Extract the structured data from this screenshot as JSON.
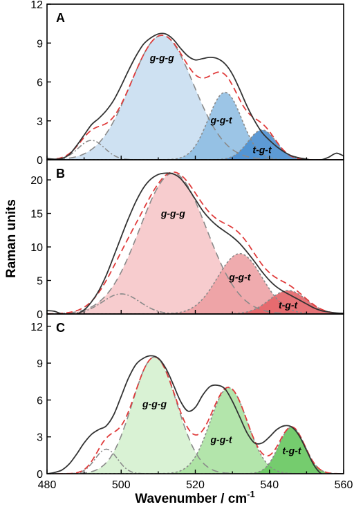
{
  "figure": {
    "xlabel_main": "Wavenumber / cm",
    "xlabel_sup": "-1",
    "ylabel": "Raman units",
    "xlim": [
      480,
      560
    ],
    "x_ticks": [
      "480",
      "500",
      "520",
      "540",
      "560"
    ]
  },
  "chart_data": [
    {
      "type": "area",
      "panel": "A",
      "xlabel": "Wavenumber / cm-1",
      "ylabel": "Raman units",
      "xlim": [
        480,
        560
      ],
      "ylim": [
        0,
        12
      ],
      "y_ticks": [
        "0",
        "3",
        "6",
        "9",
        "12"
      ],
      "colors": {
        "fill": "#bdd7ee",
        "peak": "#5b9bd5"
      },
      "band_labels": [
        {
          "text": "g-g-g",
          "x": 511,
          "y": 7.6
        },
        {
          "text": "g-g-t",
          "x": 527,
          "y": 2.8
        },
        {
          "text": "t-g-t",
          "x": 538,
          "y": 0.5
        }
      ],
      "components": [
        {
          "label": "g-g-g",
          "center": 511,
          "height": 9.6,
          "sigma": 8.5,
          "fill": "#c6dcf0",
          "opacity": 0.85,
          "dash": "10,6"
        },
        {
          "label": "g-g-t",
          "center": 528,
          "height": 5.2,
          "sigma": 4.5,
          "fill": "#8bbbe2",
          "opacity": 0.85,
          "dash": "3,3"
        },
        {
          "label": "t-g-t",
          "center": 538,
          "height": 2.3,
          "sigma": 3.8,
          "fill": "#4b8fd0",
          "opacity": 0.9,
          "dash": "3,3"
        },
        {
          "label": "",
          "center": 492,
          "height": 1.5,
          "sigma": 3.5,
          "fill": "none",
          "opacity": 0,
          "dash": "8,3,2,3"
        }
      ],
      "measured": {
        "x": [
          480,
          482,
          484,
          486,
          488,
          490,
          492,
          494,
          496,
          498,
          500,
          502,
          504,
          506,
          508,
          510,
          512,
          514,
          516,
          518,
          520,
          522,
          524,
          526,
          528,
          530,
          532,
          534,
          536,
          538,
          540,
          542,
          544,
          546,
          548,
          550,
          552,
          554,
          556,
          558,
          560
        ],
        "y": [
          0.1,
          0.05,
          0.1,
          0.4,
          1.1,
          1.9,
          2.7,
          3.2,
          3.8,
          4.6,
          5.7,
          6.9,
          8.0,
          8.9,
          9.4,
          9.7,
          9.7,
          9.3,
          8.6,
          8.0,
          7.7,
          7.8,
          7.9,
          7.8,
          7.4,
          6.6,
          5.4,
          4.1,
          3.0,
          2.1,
          1.5,
          1.0,
          0.6,
          0.3,
          0.15,
          0.05,
          -0.05,
          0.0,
          0.2,
          0.5,
          0.3
        ]
      }
    },
    {
      "type": "area",
      "panel": "B",
      "xlabel": "Wavenumber / cm-1",
      "ylabel": "Raman units",
      "xlim": [
        480,
        560
      ],
      "ylim": [
        0,
        23
      ],
      "y_ticks": [
        "0",
        "5",
        "10",
        "15",
        "20"
      ],
      "colors": {
        "fill": "#f4c6c8",
        "peak": "#e06060"
      },
      "band_labels": [
        {
          "text": "g-g-g",
          "x": 514,
          "y": 14.5
        },
        {
          "text": "g-g-t",
          "x": 532,
          "y": 5.0
        },
        {
          "text": "t-g-t",
          "x": 545,
          "y": 0.8
        }
      ],
      "components": [
        {
          "label": "g-g-g",
          "center": 514,
          "height": 21.0,
          "sigma": 9.0,
          "fill": "#f6c3c6",
          "opacity": 0.85,
          "dash": "10,6"
        },
        {
          "label": "g-g-t",
          "center": 532,
          "height": 9.0,
          "sigma": 6.0,
          "fill": "#ec9ca0",
          "opacity": 0.85,
          "dash": "3,3"
        },
        {
          "label": "t-g-t",
          "center": 545,
          "height": 3.5,
          "sigma": 5.0,
          "fill": "#e46468",
          "opacity": 0.9,
          "dash": "3,3"
        },
        {
          "label": "",
          "center": 500,
          "height": 3.0,
          "sigma": 5.0,
          "fill": "none",
          "opacity": 0,
          "dash": "8,3,2,3"
        }
      ],
      "measured": {
        "x": [
          480,
          482,
          484,
          486,
          488,
          490,
          492,
          494,
          496,
          498,
          500,
          502,
          504,
          506,
          508,
          510,
          512,
          514,
          516,
          518,
          520,
          522,
          524,
          526,
          528,
          530,
          532,
          534,
          536,
          538,
          540,
          542,
          544,
          546,
          548,
          550,
          552,
          554,
          556,
          558,
          560
        ],
        "y": [
          0.5,
          0.4,
          0.0,
          -0.1,
          0.0,
          0.6,
          1.8,
          3.5,
          5.8,
          8.6,
          11.5,
          14.3,
          16.8,
          18.8,
          20.1,
          20.8,
          21.0,
          20.9,
          20.2,
          18.8,
          17.1,
          15.4,
          14.1,
          13.1,
          12.3,
          11.5,
          10.5,
          9.2,
          7.8,
          6.3,
          5.0,
          4.0,
          3.3,
          2.7,
          2.1,
          1.5,
          0.9,
          0.5,
          0.3,
          0.15,
          0.1
        ]
      }
    },
    {
      "type": "area",
      "panel": "C",
      "xlabel": "Wavenumber / cm-1",
      "ylabel": "Raman units",
      "xlim": [
        480,
        560
      ],
      "ylim": [
        0,
        13
      ],
      "y_ticks": [
        "0",
        "3",
        "6",
        "9",
        "12"
      ],
      "colors": {
        "fill": "#c8ecc0",
        "peak": "#5cc05a"
      },
      "band_labels": [
        {
          "text": "g-g-g",
          "x": 509,
          "y": 5.4
        },
        {
          "text": "g-g-t",
          "x": 527,
          "y": 2.5
        },
        {
          "text": "t-g-t",
          "x": 546,
          "y": 1.6
        }
      ],
      "components": [
        {
          "label": "g-g-g",
          "center": 509,
          "height": 9.5,
          "sigma": 6.0,
          "fill": "#d2f0cc",
          "opacity": 0.85,
          "dash": "10,6"
        },
        {
          "label": "g-g-t",
          "center": 529,
          "height": 7.0,
          "sigma": 5.0,
          "fill": "#a6e09c",
          "opacity": 0.85,
          "dash": "3,3"
        },
        {
          "label": "t-g-t",
          "center": 546,
          "height": 3.8,
          "sigma": 3.5,
          "fill": "#66c75e",
          "opacity": 0.9,
          "dash": "3,3"
        },
        {
          "label": "",
          "center": 496,
          "height": 2.0,
          "sigma": 3.0,
          "fill": "none",
          "opacity": 0,
          "dash": "8,3,2,3"
        }
      ],
      "measured": {
        "x": [
          480,
          482,
          484,
          486,
          488,
          490,
          492,
          494,
          496,
          498,
          500,
          502,
          504,
          506,
          508,
          510,
          512,
          514,
          516,
          518,
          520,
          522,
          524,
          526,
          528,
          530,
          532,
          534,
          536,
          538,
          540,
          542,
          544,
          546,
          548,
          550,
          552,
          554,
          556,
          558,
          560
        ],
        "y": [
          0.0,
          0.1,
          0.3,
          0.8,
          1.6,
          2.5,
          3.2,
          3.6,
          3.9,
          4.8,
          6.3,
          7.8,
          8.9,
          9.4,
          9.6,
          9.4,
          8.6,
          7.3,
          5.9,
          5.1,
          5.4,
          6.4,
          7.1,
          7.2,
          6.9,
          5.9,
          4.6,
          3.3,
          2.5,
          2.5,
          3.0,
          3.6,
          3.9,
          3.8,
          3.1,
          1.9,
          0.7,
          0.0,
          0.0,
          0.0,
          0.0
        ]
      }
    }
  ]
}
